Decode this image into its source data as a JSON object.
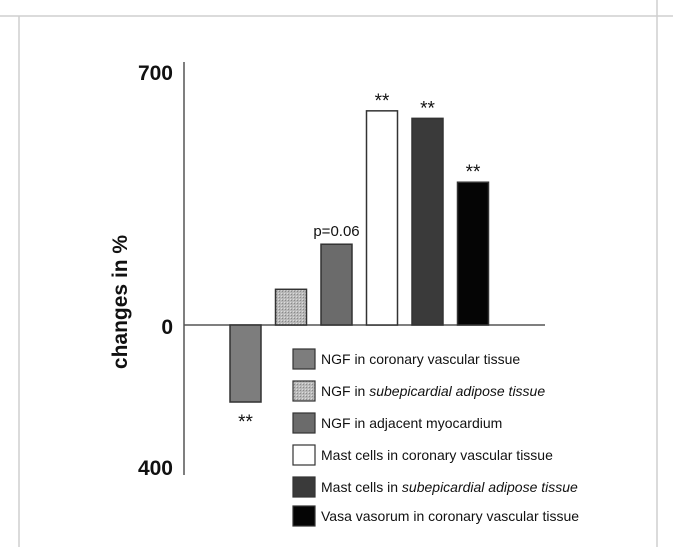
{
  "chart_data": {
    "type": "bar",
    "title": "",
    "xlabel": "",
    "ylabel": "changes in %",
    "ylim": [
      -400,
      700
    ],
    "yticks": [
      {
        "value": 700,
        "label": "700"
      },
      {
        "value": 0,
        "label": "0"
      },
      {
        "value": -400,
        "label": "400"
      }
    ],
    "categories": [
      "NGF in coronary vascular tissue",
      "NGF in subepicardial adipose tissue",
      "NGF in adjacent myocardium",
      "Mast cells in coronary vascular tissue",
      "Mast cells in subepicardial adipose tissue",
      "Vasa vorum in coronary vascular tissue"
    ],
    "series": [
      {
        "values": [
          -205,
          95,
          215,
          570,
          550,
          380
        ],
        "annotations": [
          "**",
          "",
          "p=0.06",
          "**",
          "**",
          "**"
        ],
        "colors": [
          "#7d7d7d",
          "#b4b4b4",
          "#6b6b6b",
          "#ffffff",
          "#3a3a3a",
          "#050505"
        ]
      }
    ],
    "legend": {
      "placement": "bottom-right",
      "entries": [
        {
          "prefix": "NGF in ",
          "italic": "",
          "suffix": "coronary vascular tissue"
        },
        {
          "prefix": "NGF in ",
          "italic": "subepicardial adipose tissue",
          "suffix": ""
        },
        {
          "prefix": "NGF in ",
          "italic": "",
          "suffix": "adjacent myocardium"
        },
        {
          "prefix": "Mast cells in ",
          "italic": "",
          "suffix": "coronary vascular tissue"
        },
        {
          "prefix": "Mast cells in ",
          "italic": "subepicardial adipose tissue",
          "suffix": ""
        },
        {
          "prefix": "Vasa vasorum in ",
          "italic": "",
          "suffix": "coronary vascular tissue"
        }
      ]
    },
    "grid": false
  }
}
